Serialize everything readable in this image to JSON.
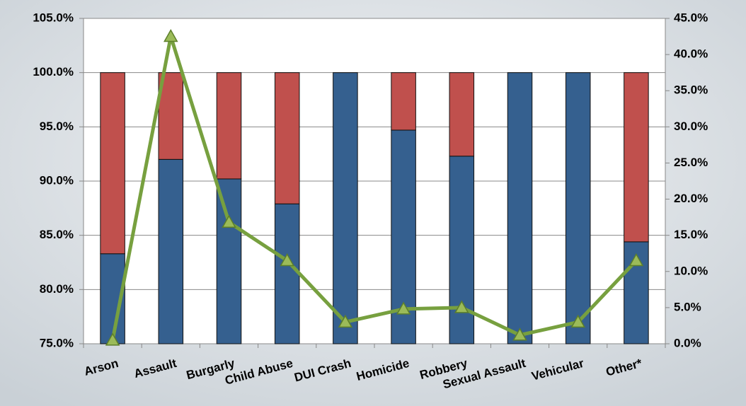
{
  "chart_data": {
    "type": "bar_line",
    "categories": [
      "Arson",
      "Assault",
      "Burgarly",
      "Child Abuse",
      "DUI Crash",
      "Homicide",
      "Robbery",
      "Sexual Assault",
      "Vehicular",
      "Other*"
    ],
    "series": [
      {
        "type": "bar",
        "color": "#35608f",
        "values": [
          83.3,
          92.0,
          90.2,
          87.9,
          100.0,
          94.7,
          92.3,
          100.0,
          100.0,
          84.4
        ]
      },
      {
        "type": "bar",
        "color": "#c0504d",
        "values": [
          16.7,
          8.0,
          9.8,
          12.1,
          0.0,
          5.3,
          7.7,
          0.0,
          0.0,
          15.6
        ]
      },
      {
        "type": "line",
        "axis": "y2",
        "color": "#77a03f",
        "values": [
          0.5,
          42.5,
          16.8,
          11.5,
          3.0,
          4.8,
          5.0,
          1.2,
          3.0,
          11.5
        ]
      }
    ],
    "ylim": [
      75,
      105
    ],
    "yticks": [
      {
        "value": 75,
        "label": "75.0%"
      },
      {
        "value": 80,
        "label": "80.0%"
      },
      {
        "value": 85,
        "label": "85.0%"
      },
      {
        "value": 90,
        "label": "90.0%"
      },
      {
        "value": 95,
        "label": "95.0%"
      },
      {
        "value": 100,
        "label": "100.0%"
      },
      {
        "value": 105,
        "label": "105.0%"
      }
    ],
    "y2lim": [
      0,
      45
    ],
    "y2ticks": [
      {
        "value": 0,
        "label": "0.0%"
      },
      {
        "value": 5,
        "label": "5.0%"
      },
      {
        "value": 10,
        "label": "10.0%"
      },
      {
        "value": 15,
        "label": "15.0%"
      },
      {
        "value": 20,
        "label": "20.0%"
      },
      {
        "value": 25,
        "label": "25.0%"
      },
      {
        "value": 30,
        "label": "30.0%"
      },
      {
        "value": 35,
        "label": "35.0%"
      },
      {
        "value": 40,
        "label": "40.0%"
      },
      {
        "value": 45,
        "label": "45.0%"
      }
    ],
    "grid": true
  }
}
